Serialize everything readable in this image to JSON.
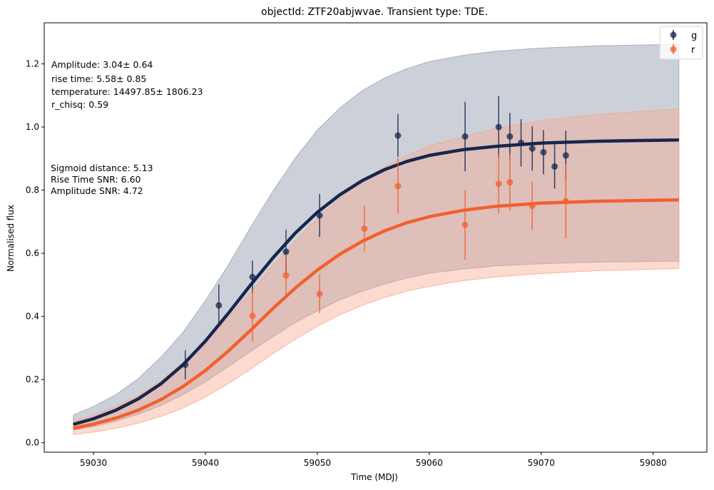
{
  "chart_data": {
    "type": "line",
    "title": "objectId: ZTF20abjwvae. Transient type: TDE.",
    "xlabel": "Time (MDJ)",
    "ylabel": "Normalised flux",
    "xlim": [
      59025.6,
      59084.8
    ],
    "ylim": [
      -0.03,
      1.33
    ],
    "xticks": [
      59030,
      59040,
      59050,
      59060,
      59070,
      59080
    ],
    "yticks": [
      0.0,
      0.2,
      0.4,
      0.6,
      0.8,
      1.0,
      1.2
    ],
    "grid": false,
    "legend_position": "top-right",
    "annotations": [
      "Amplitude: 3.04± 0.64",
      "rise time: 5.58± 0.85",
      "temperature: 14497.85± 1806.23",
      "r_chisq: 0.59",
      "Sigmoid distance: 5.13",
      "Rise Time SNR: 6.60",
      "Amplitude SNR: 4.72"
    ],
    "series": [
      {
        "name": "g",
        "color": "#17264d",
        "band_color": "#9aa3b3",
        "points": [
          {
            "x": 59038.2,
            "y": 0.247,
            "err": 0.046
          },
          {
            "x": 59041.2,
            "y": 0.435,
            "err": 0.066
          },
          {
            "x": 59044.2,
            "y": 0.525,
            "err": 0.052
          },
          {
            "x": 59047.2,
            "y": 0.605,
            "err": 0.07
          },
          {
            "x": 59050.2,
            "y": 0.72,
            "err": 0.068
          },
          {
            "x": 59057.2,
            "y": 0.973,
            "err": 0.068
          },
          {
            "x": 59063.2,
            "y": 0.97,
            "err": 0.11
          },
          {
            "x": 59066.2,
            "y": 1.0,
            "err": 0.098
          },
          {
            "x": 59067.2,
            "y": 0.97,
            "err": 0.075
          },
          {
            "x": 59068.2,
            "y": 0.95,
            "err": 0.075
          },
          {
            "x": 59069.2,
            "y": 0.932,
            "err": 0.07
          },
          {
            "x": 59070.2,
            "y": 0.92,
            "err": 0.07
          },
          {
            "x": 59071.2,
            "y": 0.875,
            "err": 0.07
          },
          {
            "x": 59072.2,
            "y": 0.91,
            "err": 0.078
          }
        ],
        "model_curve": [
          {
            "x": 59028.2,
            "y": 0.058,
            "low": 0.04,
            "high": 0.088
          },
          {
            "x": 59030,
            "y": 0.076,
            "low": 0.051,
            "high": 0.115
          },
          {
            "x": 59032,
            "y": 0.103,
            "low": 0.068,
            "high": 0.152
          },
          {
            "x": 59034,
            "y": 0.139,
            "low": 0.09,
            "high": 0.203
          },
          {
            "x": 59036,
            "y": 0.186,
            "low": 0.118,
            "high": 0.27
          },
          {
            "x": 59038,
            "y": 0.247,
            "low": 0.152,
            "high": 0.35
          },
          {
            "x": 59040,
            "y": 0.322,
            "low": 0.193,
            "high": 0.45
          },
          {
            "x": 59042,
            "y": 0.408,
            "low": 0.24,
            "high": 0.56
          },
          {
            "x": 59044,
            "y": 0.498,
            "low": 0.288,
            "high": 0.68
          },
          {
            "x": 59046,
            "y": 0.584,
            "low": 0.335,
            "high": 0.795
          },
          {
            "x": 59048,
            "y": 0.663,
            "low": 0.38,
            "high": 0.9
          },
          {
            "x": 59050,
            "y": 0.73,
            "low": 0.417,
            "high": 0.99
          },
          {
            "x": 59052,
            "y": 0.785,
            "low": 0.452,
            "high": 1.06
          },
          {
            "x": 59054,
            "y": 0.83,
            "low": 0.48,
            "high": 1.115
          },
          {
            "x": 59056,
            "y": 0.865,
            "low": 0.503,
            "high": 1.155
          },
          {
            "x": 59058,
            "y": 0.891,
            "low": 0.522,
            "high": 1.185
          },
          {
            "x": 59060,
            "y": 0.91,
            "low": 0.537,
            "high": 1.207
          },
          {
            "x": 59063,
            "y": 0.928,
            "low": 0.55,
            "high": 1.227
          },
          {
            "x": 59066,
            "y": 0.939,
            "low": 0.56,
            "high": 1.24
          },
          {
            "x": 59070,
            "y": 0.949,
            "low": 0.567,
            "high": 1.25
          },
          {
            "x": 59075,
            "y": 0.955,
            "low": 0.572,
            "high": 1.257
          },
          {
            "x": 59082.3,
            "y": 0.959,
            "low": 0.575,
            "high": 1.262
          }
        ]
      },
      {
        "name": "r",
        "color": "#f1602e",
        "band_color": "#f9a88c",
        "points": [
          {
            "x": 59044.2,
            "y": 0.402,
            "err": 0.082
          },
          {
            "x": 59047.2,
            "y": 0.53,
            "err": 0.066
          },
          {
            "x": 59050.2,
            "y": 0.472,
            "err": 0.062
          },
          {
            "x": 59054.2,
            "y": 0.678,
            "err": 0.072
          },
          {
            "x": 59057.2,
            "y": 0.813,
            "err": 0.088
          },
          {
            "x": 59063.2,
            "y": 0.69,
            "err": 0.11
          },
          {
            "x": 59066.2,
            "y": 0.82,
            "err": 0.094
          },
          {
            "x": 59067.2,
            "y": 0.825,
            "err": 0.09
          },
          {
            "x": 59069.2,
            "y": 0.75,
            "err": 0.076
          },
          {
            "x": 59072.2,
            "y": 0.765,
            "err": 0.118
          }
        ],
        "model_curve": [
          {
            "x": 59028.2,
            "y": 0.046,
            "low": 0.026,
            "high": 0.07
          },
          {
            "x": 59030,
            "y": 0.059,
            "low": 0.034,
            "high": 0.088
          },
          {
            "x": 59032,
            "y": 0.078,
            "low": 0.046,
            "high": 0.115
          },
          {
            "x": 59034,
            "y": 0.103,
            "low": 0.062,
            "high": 0.15
          },
          {
            "x": 59036,
            "y": 0.136,
            "low": 0.083,
            "high": 0.196
          },
          {
            "x": 59038,
            "y": 0.178,
            "low": 0.11,
            "high": 0.253
          },
          {
            "x": 59040,
            "y": 0.229,
            "low": 0.145,
            "high": 0.32
          },
          {
            "x": 59042,
            "y": 0.289,
            "low": 0.186,
            "high": 0.395
          },
          {
            "x": 59044,
            "y": 0.355,
            "low": 0.232,
            "high": 0.475
          },
          {
            "x": 59046,
            "y": 0.424,
            "low": 0.281,
            "high": 0.56
          },
          {
            "x": 59048,
            "y": 0.489,
            "low": 0.327,
            "high": 0.638
          },
          {
            "x": 59050,
            "y": 0.547,
            "low": 0.369,
            "high": 0.71
          },
          {
            "x": 59052,
            "y": 0.597,
            "low": 0.405,
            "high": 0.775
          },
          {
            "x": 59054,
            "y": 0.638,
            "low": 0.435,
            "high": 0.83
          },
          {
            "x": 59056,
            "y": 0.671,
            "low": 0.46,
            "high": 0.875
          },
          {
            "x": 59058,
            "y": 0.697,
            "low": 0.48,
            "high": 0.91
          },
          {
            "x": 59060,
            "y": 0.716,
            "low": 0.495,
            "high": 0.94
          },
          {
            "x": 59063,
            "y": 0.736,
            "low": 0.513,
            "high": 0.97
          },
          {
            "x": 59066,
            "y": 0.749,
            "low": 0.525,
            "high": 0.995
          },
          {
            "x": 59070,
            "y": 0.759,
            "low": 0.536,
            "high": 1.02
          },
          {
            "x": 59075,
            "y": 0.765,
            "low": 0.545,
            "high": 1.04
          },
          {
            "x": 59082.3,
            "y": 0.769,
            "low": 0.552,
            "high": 1.058
          }
        ]
      }
    ]
  }
}
